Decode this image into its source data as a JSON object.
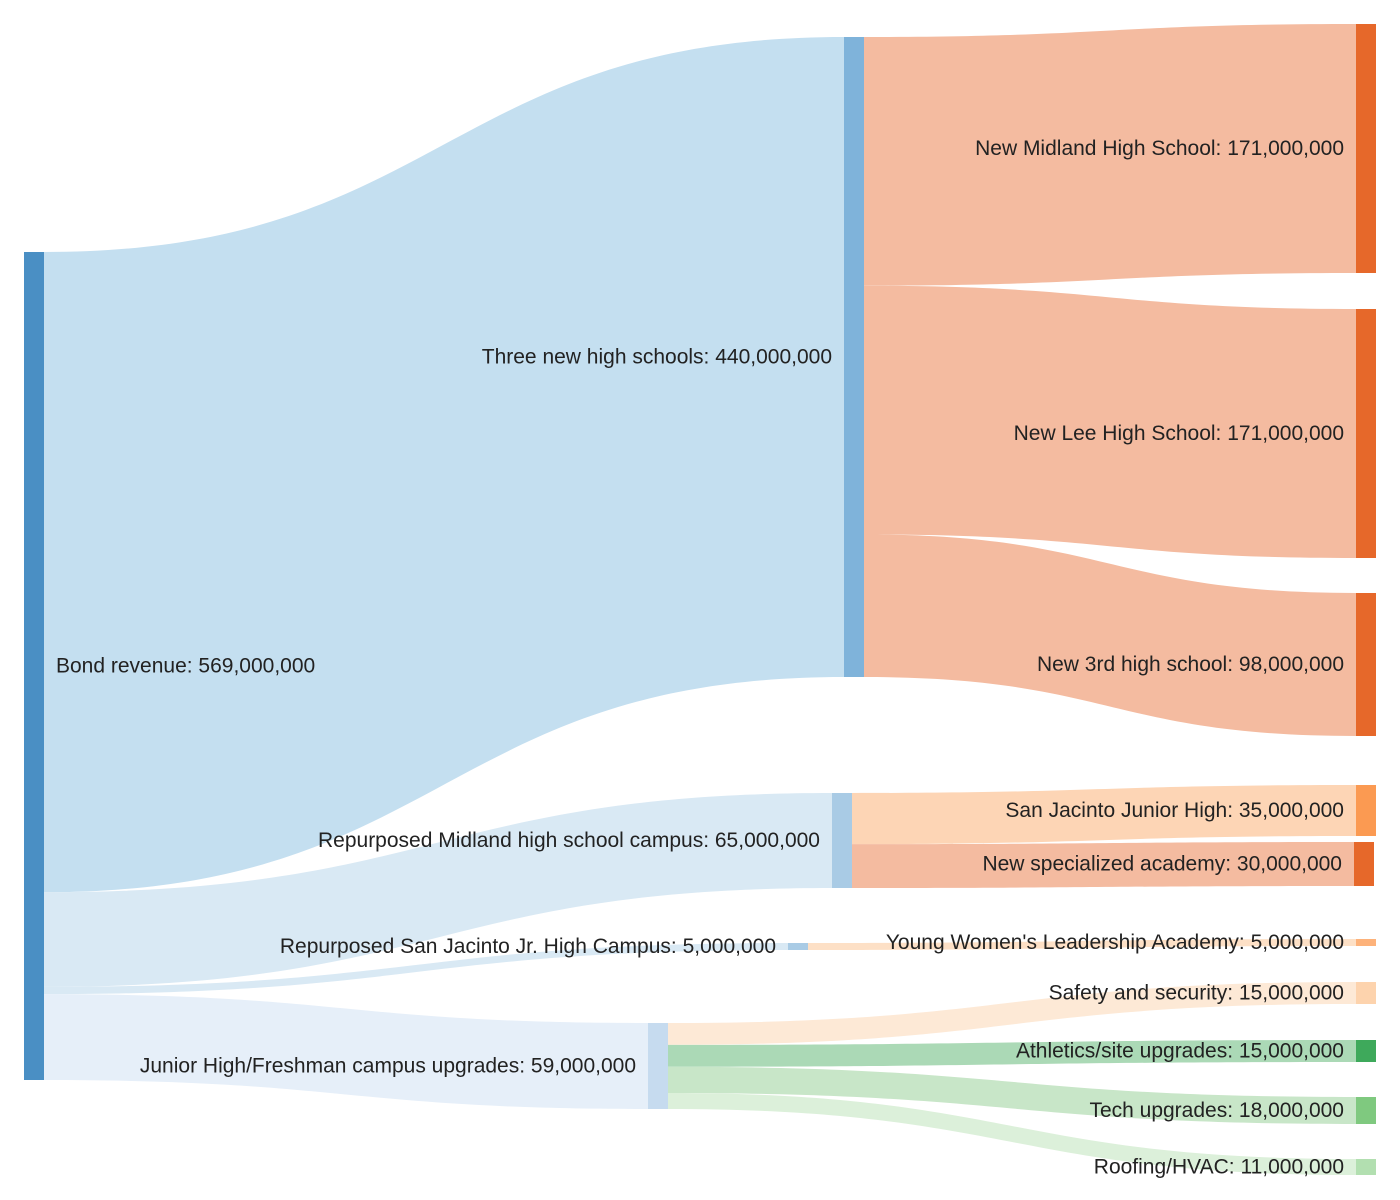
{
  "diagram": {
    "type": "sankey",
    "nodes": [
      {
        "id": "bond",
        "label": "Bond revenue: 569,000,000",
        "value": 569000000,
        "color": "#4a8fc4"
      },
      {
        "id": "three",
        "label": "Three new high schools: 440,000,000",
        "value": 440000000,
        "color": "#7fb3da"
      },
      {
        "id": "repMidland",
        "label": "Repurposed Midland high school campus: 65,000,000",
        "value": 65000000,
        "color": "#a9cbe5"
      },
      {
        "id": "repSanJac",
        "label": "Repurposed San Jacinto Jr. High Campus: 5,000,000",
        "value": 5000000,
        "color": "#a9cbe5"
      },
      {
        "id": "jrUpgrades",
        "label": "Junior High/Freshman campus upgrades: 59,000,000",
        "value": 59000000,
        "color": "#c6dbef"
      },
      {
        "id": "midlandHS",
        "label": "New Midland High School: 171,000,000",
        "value": 171000000,
        "color": "#e6682a"
      },
      {
        "id": "leeHS",
        "label": "New Lee High School: 171,000,000",
        "value": 171000000,
        "color": "#e6682a"
      },
      {
        "id": "third",
        "label": "New 3rd high school: 98,000,000",
        "value": 98000000,
        "color": "#e6682a"
      },
      {
        "id": "sanJacJH",
        "label": "San Jacinto Junior High: 35,000,000",
        "value": 35000000,
        "color": "#fb9a52"
      },
      {
        "id": "academy",
        "label": "New specialized academy: 30,000,000",
        "value": 30000000,
        "color": "#e6682a"
      },
      {
        "id": "ywla",
        "label": "Young Women's Leadership Academy: 5,000,000",
        "value": 5000000,
        "color": "#fdb27a"
      },
      {
        "id": "safety",
        "label": "Safety and security: 15,000,000",
        "value": 15000000,
        "color": "#fdd3ad"
      },
      {
        "id": "athletics",
        "label": "Athletics/site upgrades: 15,000,000",
        "value": 15000000,
        "color": "#3ea95b"
      },
      {
        "id": "tech",
        "label": "Tech upgrades: 18,000,000",
        "value": 18000000,
        "color": "#7fc97f"
      },
      {
        "id": "roofing",
        "label": "Roofing/HVAC: 11,000,000",
        "value": 11000000,
        "color": "#b2dfb0"
      }
    ],
    "links": [
      {
        "source": "bond",
        "target": "three",
        "value": 440000000,
        "color": "#c4dff0"
      },
      {
        "source": "bond",
        "target": "repMidland",
        "value": 65000000,
        "color": "#d9e9f4"
      },
      {
        "source": "bond",
        "target": "repSanJac",
        "value": 5000000,
        "color": "#d9e9f4"
      },
      {
        "source": "bond",
        "target": "jrUpgrades",
        "value": 59000000,
        "color": "#e6eff9"
      },
      {
        "source": "three",
        "target": "midlandHS",
        "value": 171000000,
        "color": "#f4bba0"
      },
      {
        "source": "three",
        "target": "leeHS",
        "value": 171000000,
        "color": "#f4bba0"
      },
      {
        "source": "three",
        "target": "third",
        "value": 98000000,
        "color": "#f4bba0"
      },
      {
        "source": "repMidland",
        "target": "sanJacJH",
        "value": 35000000,
        "color": "#fdd5b5"
      },
      {
        "source": "repMidland",
        "target": "academy",
        "value": 30000000,
        "color": "#f4bba0"
      },
      {
        "source": "repSanJac",
        "target": "ywla",
        "value": 5000000,
        "color": "#fde0c6"
      },
      {
        "source": "jrUpgrades",
        "target": "safety",
        "value": 15000000,
        "color": "#fde9d6"
      },
      {
        "source": "jrUpgrades",
        "target": "athletics",
        "value": 15000000,
        "color": "#abd9b6"
      },
      {
        "source": "jrUpgrades",
        "target": "tech",
        "value": 18000000,
        "color": "#c8e6c8"
      },
      {
        "source": "jrUpgrades",
        "target": "roofing",
        "value": 11000000,
        "color": "#dcf0da"
      }
    ]
  }
}
